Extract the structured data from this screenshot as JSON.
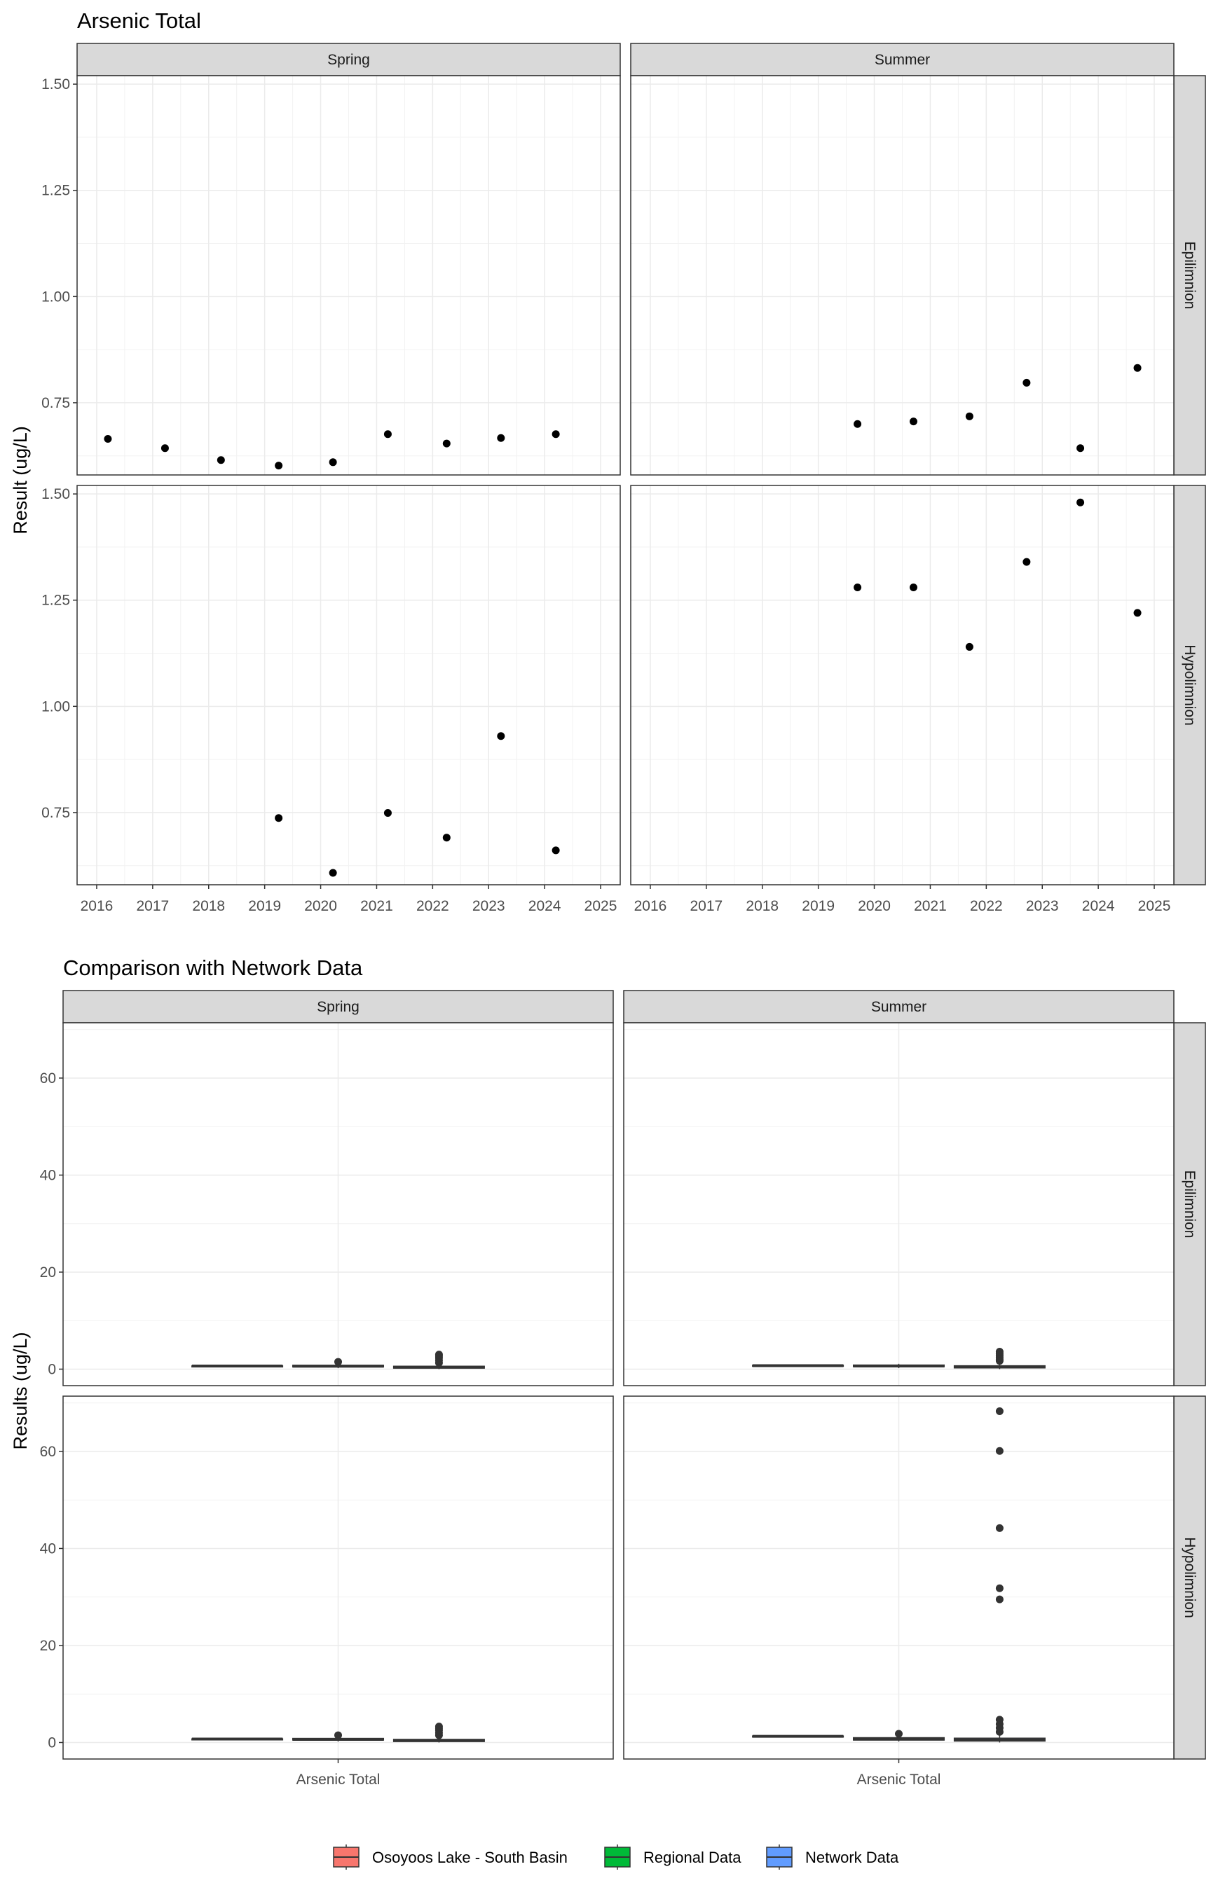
{
  "chart_data": [
    {
      "type": "scatter",
      "title": "Arsenic Total",
      "ylabel": "Result (ug/L)",
      "xlabel": "",
      "x_ticks": [
        "2016",
        "2017",
        "2018",
        "2019",
        "2020",
        "2021",
        "2022",
        "2023",
        "2024",
        "2025"
      ],
      "xlim": [
        2015.65,
        2025.35
      ],
      "y_ticks": [
        "0.75",
        "1.00",
        "1.25",
        "1.50"
      ],
      "columns": [
        "Spring",
        "Summer"
      ],
      "rows": [
        "Epilimnion",
        "Hypolimnion"
      ],
      "grid": true,
      "panels": [
        {
          "season": "Spring",
          "layer": "Epilimnion",
          "ylim": [
            0.58,
            1.52
          ],
          "points": [
            {
              "x": 2016.2,
              "y": 0.665
            },
            {
              "x": 2017.22,
              "y": 0.643
            },
            {
              "x": 2018.22,
              "y": 0.615
            },
            {
              "x": 2019.25,
              "y": 0.602
            },
            {
              "x": 2020.22,
              "y": 0.61
            },
            {
              "x": 2021.2,
              "y": 0.676
            },
            {
              "x": 2022.25,
              "y": 0.654
            },
            {
              "x": 2023.22,
              "y": 0.667
            },
            {
              "x": 2024.2,
              "y": 0.676
            }
          ]
        },
        {
          "season": "Summer",
          "layer": "Epilimnion",
          "ylim": [
            0.58,
            1.52
          ],
          "points": [
            {
              "x": 2019.7,
              "y": 0.7
            },
            {
              "x": 2020.7,
              "y": 0.706
            },
            {
              "x": 2021.7,
              "y": 0.718
            },
            {
              "x": 2022.72,
              "y": 0.797
            },
            {
              "x": 2023.68,
              "y": 0.643
            },
            {
              "x": 2024.7,
              "y": 0.832
            }
          ]
        },
        {
          "season": "Spring",
          "layer": "Hypolimnion",
          "ylim": [
            0.58,
            1.52
          ],
          "points": [
            {
              "x": 2019.25,
              "y": 0.737
            },
            {
              "x": 2020.22,
              "y": 0.608
            },
            {
              "x": 2021.2,
              "y": 0.749
            },
            {
              "x": 2022.25,
              "y": 0.691
            },
            {
              "x": 2023.22,
              "y": 0.93
            },
            {
              "x": 2024.2,
              "y": 0.661
            }
          ]
        },
        {
          "season": "Summer",
          "layer": "Hypolimnion",
          "ylim": [
            0.58,
            1.52
          ],
          "points": [
            {
              "x": 2019.7,
              "y": 1.28
            },
            {
              "x": 2020.7,
              "y": 1.28
            },
            {
              "x": 2021.7,
              "y": 1.14
            },
            {
              "x": 2022.72,
              "y": 1.34
            },
            {
              "x": 2023.68,
              "y": 1.48
            },
            {
              "x": 2024.7,
              "y": 1.22
            }
          ]
        }
      ]
    },
    {
      "type": "box",
      "title": "Comparison with Network Data",
      "ylabel": "Results (ug/L)",
      "xlabel": "",
      "category": "Arsenic Total",
      "y_ticks": [
        "0",
        "20",
        "40",
        "60"
      ],
      "ylim": [
        -3.4,
        71.4
      ],
      "columns": [
        "Spring",
        "Summer"
      ],
      "rows": [
        "Epilimnion",
        "Hypolimnion"
      ],
      "grid": true,
      "groups": [
        "Osoyoos Lake - South Basin",
        "Regional Data",
        "Network Data"
      ],
      "group_colors": [
        "#F8766D",
        "#00BA38",
        "#619CFF"
      ],
      "panels": [
        {
          "season": "Spring",
          "layer": "Epilimnion",
          "boxes": [
            {
              "group": "Osoyoos Lake - South Basin",
              "q1": 0.61,
              "median": 0.64,
              "q3": 0.67,
              "whisker_low": 0.6,
              "whisker_high": 0.68,
              "outliers": []
            },
            {
              "group": "Regional Data",
              "q1": 0.45,
              "median": 0.6,
              "q3": 0.8,
              "whisker_low": 0.2,
              "whisker_high": 1.1,
              "outliers": [
                1.5
              ]
            },
            {
              "group": "Network Data",
              "q1": 0.2,
              "median": 0.4,
              "q3": 0.6,
              "whisker_low": 0.0,
              "whisker_high": 1.1,
              "outliers": [
                1.3,
                1.8,
                2.3,
                2.7,
                3.0
              ]
            }
          ]
        },
        {
          "season": "Summer",
          "layer": "Epilimnion",
          "boxes": [
            {
              "group": "Osoyoos Lake - South Basin",
              "q1": 0.7,
              "median": 0.71,
              "q3": 0.8,
              "whisker_low": 0.64,
              "whisker_high": 0.83,
              "outliers": []
            },
            {
              "group": "Regional Data",
              "q1": 0.5,
              "median": 0.65,
              "q3": 0.85,
              "whisker_low": 0.2,
              "whisker_high": 1.1,
              "outliers": []
            },
            {
              "group": "Network Data",
              "q1": 0.25,
              "median": 0.45,
              "q3": 0.7,
              "whisker_low": 0.0,
              "whisker_high": 1.3,
              "outliers": [
                1.7,
                2.0,
                2.4,
                2.8,
                3.2,
                3.6
              ]
            }
          ]
        },
        {
          "season": "Spring",
          "layer": "Hypolimnion",
          "boxes": [
            {
              "group": "Osoyoos Lake - South Basin",
              "q1": 0.66,
              "median": 0.72,
              "q3": 0.75,
              "whisker_low": 0.61,
              "whisker_high": 0.93,
              "outliers": []
            },
            {
              "group": "Regional Data",
              "q1": 0.5,
              "median": 0.65,
              "q3": 0.85,
              "whisker_low": 0.2,
              "whisker_high": 1.2,
              "outliers": [
                1.5
              ]
            },
            {
              "group": "Network Data",
              "q1": 0.2,
              "median": 0.4,
              "q3": 0.65,
              "whisker_low": 0.0,
              "whisker_high": 1.2,
              "outliers": [
                1.5,
                2.0,
                2.5,
                2.9,
                3.3
              ]
            }
          ]
        },
        {
          "season": "Summer",
          "layer": "Hypolimnion",
          "boxes": [
            {
              "group": "Osoyoos Lake - South Basin",
              "q1": 1.22,
              "median": 1.28,
              "q3": 1.34,
              "whisker_low": 1.14,
              "whisker_high": 1.48,
              "outliers": []
            },
            {
              "group": "Regional Data",
              "q1": 0.5,
              "median": 0.7,
              "q3": 1.0,
              "whisker_low": 0.2,
              "whisker_high": 1.5,
              "outliers": [
                1.8
              ]
            },
            {
              "group": "Network Data",
              "q1": 0.3,
              "median": 0.5,
              "q3": 0.9,
              "whisker_low": 0.0,
              "whisker_high": 1.6,
              "outliers": [
                2.2,
                3.0,
                3.8,
                4.7,
                29.5,
                31.8,
                44.2,
                60.1,
                68.3
              ]
            }
          ]
        }
      ]
    }
  ],
  "legend": {
    "position": "bottom",
    "items": [
      {
        "label": "Osoyoos Lake - South Basin",
        "color": "#F8766D"
      },
      {
        "label": "Regional Data",
        "color": "#00BA38"
      },
      {
        "label": "Network Data",
        "color": "#619CFF"
      }
    ]
  }
}
